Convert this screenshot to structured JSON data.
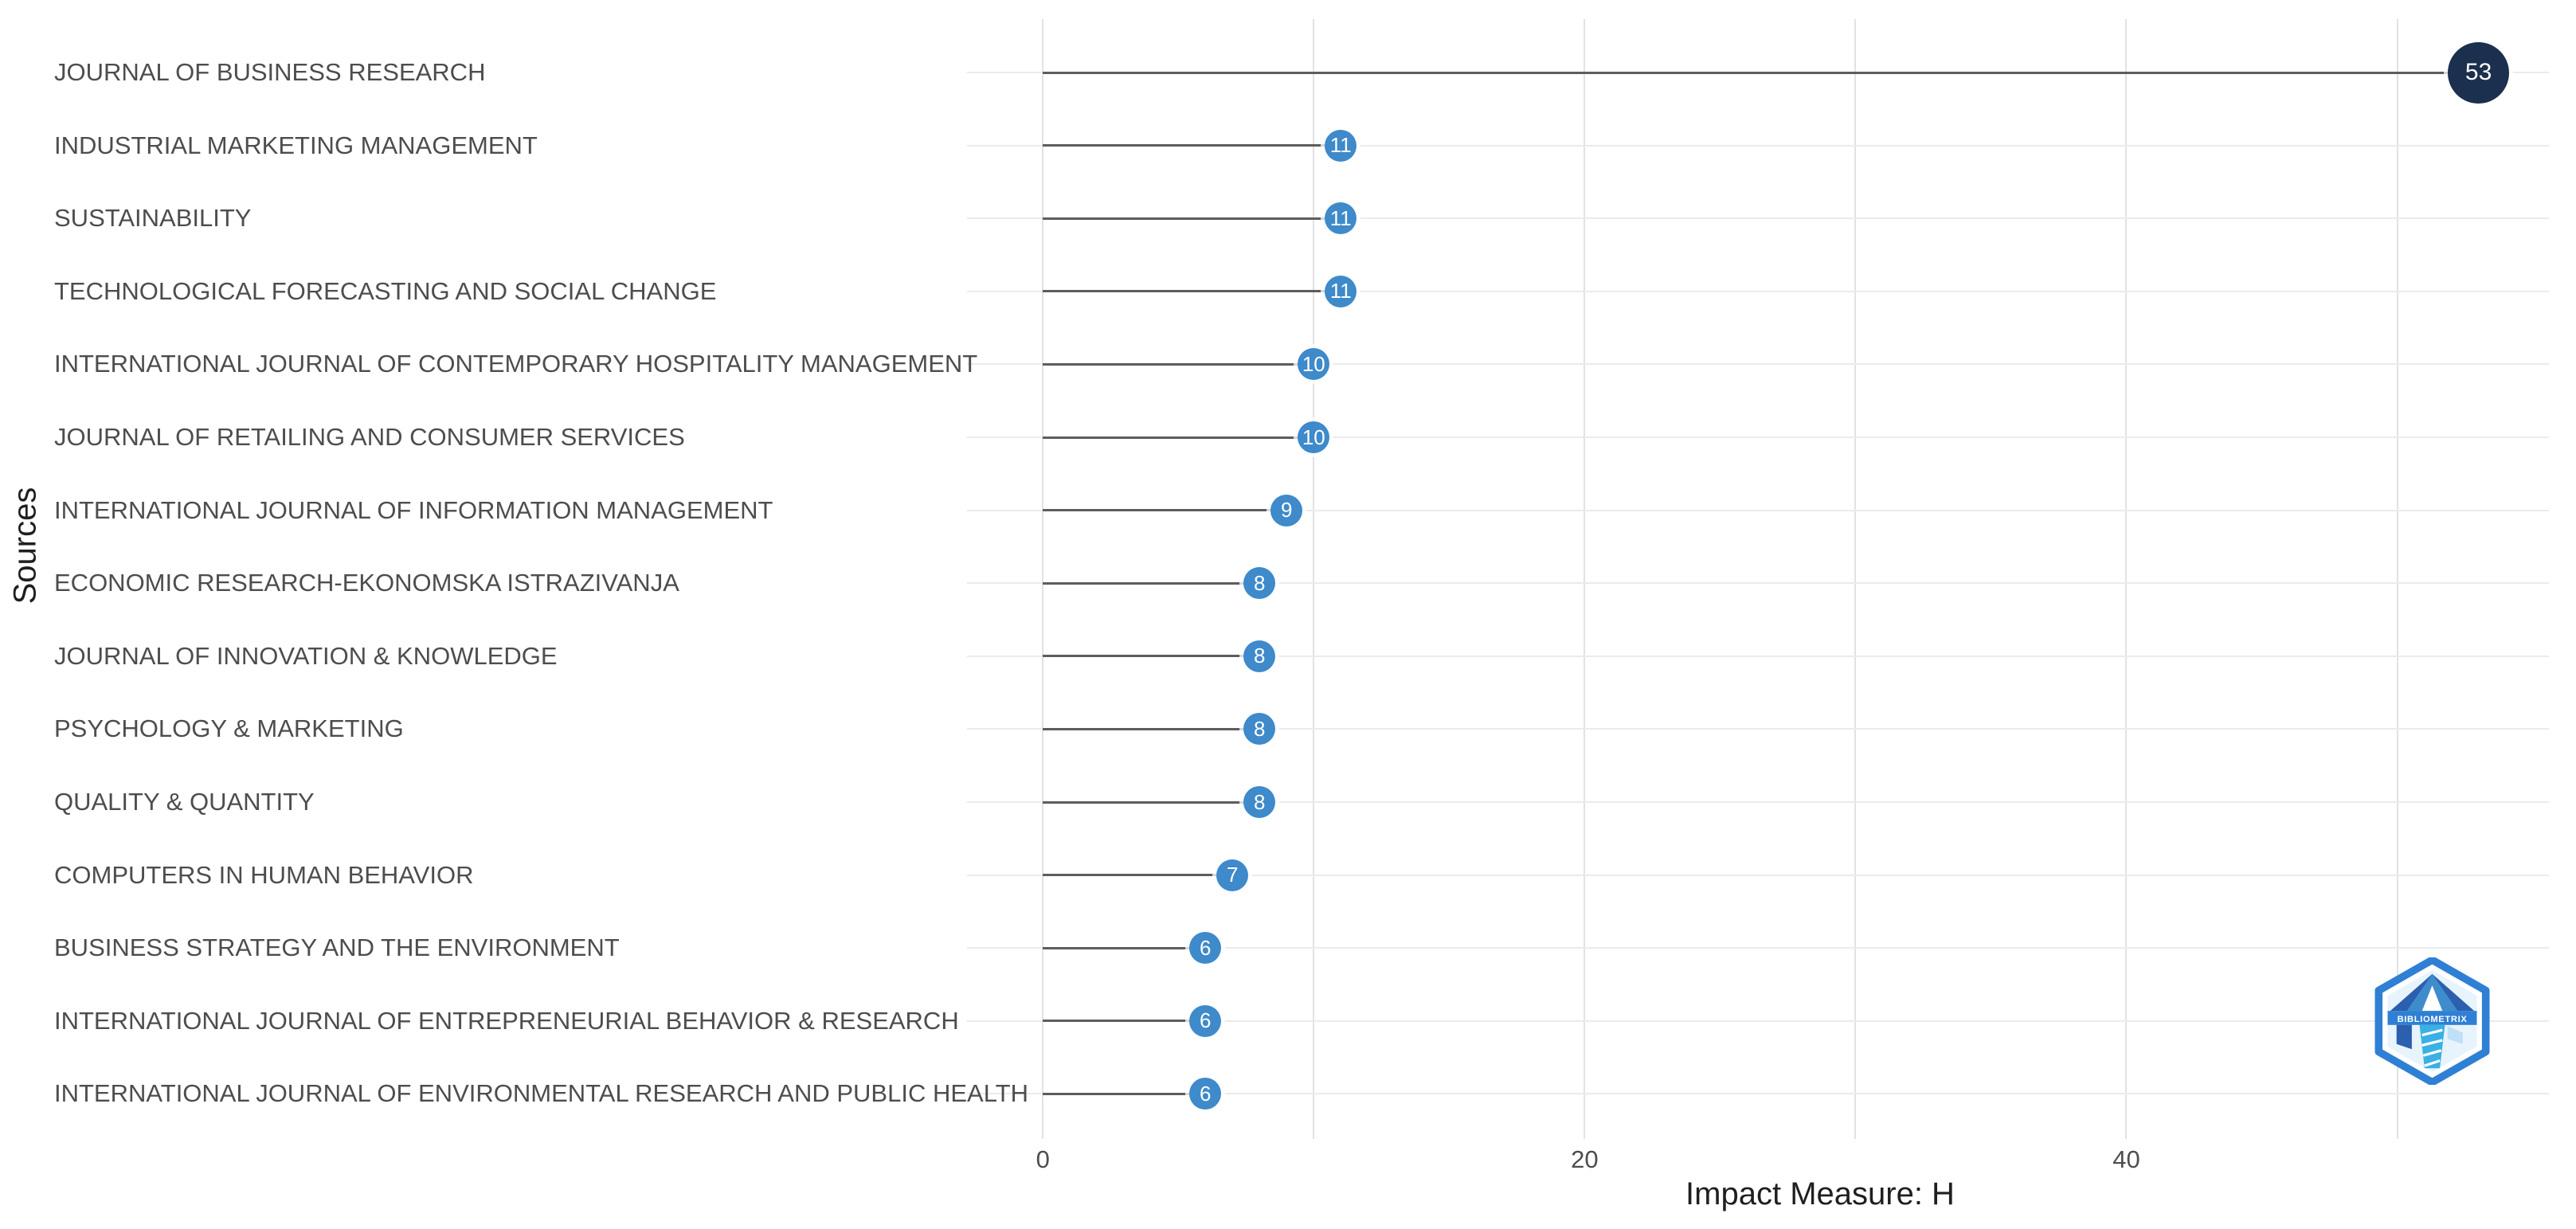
{
  "chart_data": {
    "type": "lollipop",
    "orientation": "horizontal",
    "title": "",
    "xlabel": "Impact Measure: H",
    "ylabel": "Sources",
    "categories": [
      "JOURNAL OF BUSINESS RESEARCH",
      "INDUSTRIAL MARKETING MANAGEMENT",
      "SUSTAINABILITY",
      "TECHNOLOGICAL FORECASTING AND SOCIAL CHANGE",
      "INTERNATIONAL JOURNAL OF CONTEMPORARY HOSPITALITY MANAGEMENT",
      "JOURNAL OF RETAILING AND CONSUMER SERVICES",
      "INTERNATIONAL JOURNAL OF INFORMATION MANAGEMENT",
      "ECONOMIC RESEARCH-EKONOMSKA ISTRAZIVANJA",
      "JOURNAL OF INNOVATION & KNOWLEDGE",
      "PSYCHOLOGY & MARKETING",
      "QUALITY & QUANTITY",
      "COMPUTERS IN HUMAN BEHAVIOR",
      "BUSINESS STRATEGY AND THE ENVIRONMENT",
      "INTERNATIONAL JOURNAL OF ENTREPRENEURIAL BEHAVIOR & RESEARCH",
      "INTERNATIONAL JOURNAL OF ENVIRONMENTAL RESEARCH AND PUBLIC HEALTH"
    ],
    "values": [
      53,
      11,
      11,
      11,
      10,
      10,
      9,
      8,
      8,
      8,
      8,
      7,
      6,
      6,
      6
    ],
    "xticks": [
      0,
      20,
      40
    ],
    "x_minor_gridlines": [
      10,
      30,
      50
    ],
    "xlim": [
      -2.8,
      55.6
    ],
    "grid": true,
    "legend": "none",
    "colors": {
      "point": "#3e8aca",
      "point_max": "#1b2f4e",
      "point_label": "#ffffff",
      "stem": "#5d5d5d",
      "gridline": "#e6e6e6",
      "axis_text": "#4d4d4d",
      "axis_title": "#1f1f1f",
      "background": "#ffffff"
    }
  },
  "logo": {
    "label": "BIBLIOMETRIX"
  }
}
